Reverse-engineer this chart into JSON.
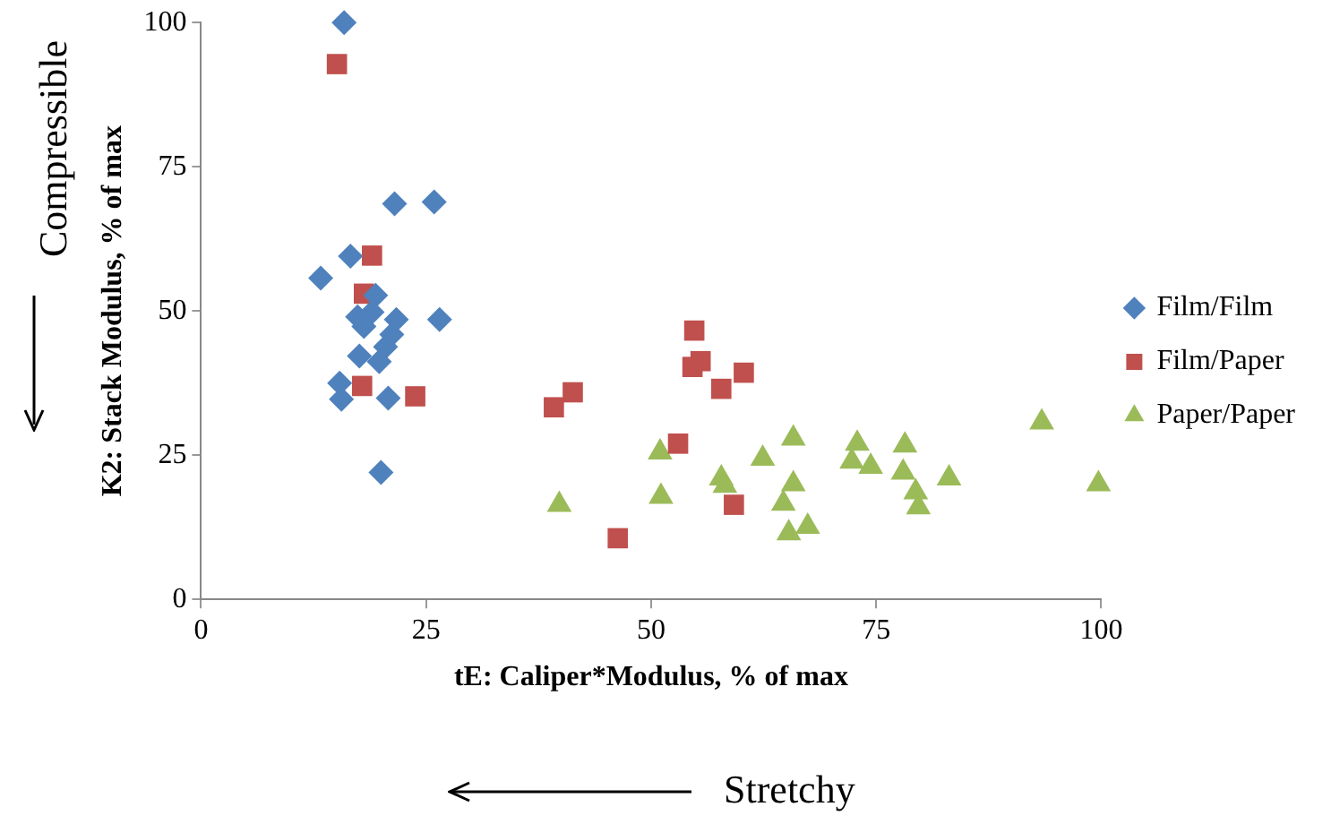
{
  "chart_data": {
    "type": "scatter",
    "xlabel": "tE: Caliper*Modulus, % of max",
    "ylabel": "K2: Stack Modulus, % of max",
    "xlim": [
      0,
      100
    ],
    "xticks": [
      0,
      25,
      50,
      75,
      100
    ],
    "ylim": [
      0,
      100
    ],
    "yticks": [
      0,
      25,
      50,
      75,
      100
    ],
    "grid": false,
    "legend": "right",
    "annotations": [
      "Compressible",
      "Stretchy"
    ],
    "series": [
      {
        "name": "Film/Film",
        "color": "#4f81bd",
        "marker": "diamond",
        "x": [
          15.9,
          21.5,
          25.9,
          16.6,
          13.3,
          19.4,
          17.4,
          19.0,
          26.5,
          21.7,
          18.1,
          21.2,
          20.5,
          17.6,
          19.8,
          15.4,
          15.6,
          20.8,
          20.0
        ],
        "values": [
          100,
          68.6,
          68.9,
          59.5,
          55.7,
          52.7,
          49,
          49.8,
          48.5,
          48.5,
          47.3,
          45.9,
          43.8,
          42.2,
          41.2,
          37.5,
          34.7,
          34.9,
          22
        ]
      },
      {
        "name": "Film/Paper",
        "color": "#c0504d",
        "marker": "square",
        "x": [
          15.1,
          19.0,
          18.1,
          17.9,
          23.8,
          54.8,
          54.6,
          55.5,
          60.3,
          57.8,
          41.3,
          39.2,
          53.0,
          59.2,
          46.3
        ],
        "values": [
          92.8,
          59.6,
          53.0,
          37.0,
          35.2,
          46.6,
          40.3,
          41.3,
          39.3,
          36.5,
          35.9,
          33.3,
          27,
          16.4,
          10.6
        ]
      },
      {
        "name": "Paper/Paper",
        "color": "#9bbb59",
        "marker": "triangle",
        "x": [
          39.8,
          51.0,
          51.1,
          57.8,
          58.2,
          62.4,
          65.8,
          65.8,
          64.7,
          65.3,
          67.4,
          72.9,
          72.3,
          74.4,
          78.2,
          78.0,
          79.4,
          79.7,
          83.1,
          93.4,
          99.7
        ],
        "values": [
          16.4,
          25.5,
          17.8,
          21,
          19.7,
          24.4,
          27.9,
          20,
          16.6,
          11.5,
          12.6,
          27,
          23.9,
          23,
          26.7,
          22,
          18.6,
          16,
          21,
          30.7,
          20
        ]
      }
    ]
  }
}
